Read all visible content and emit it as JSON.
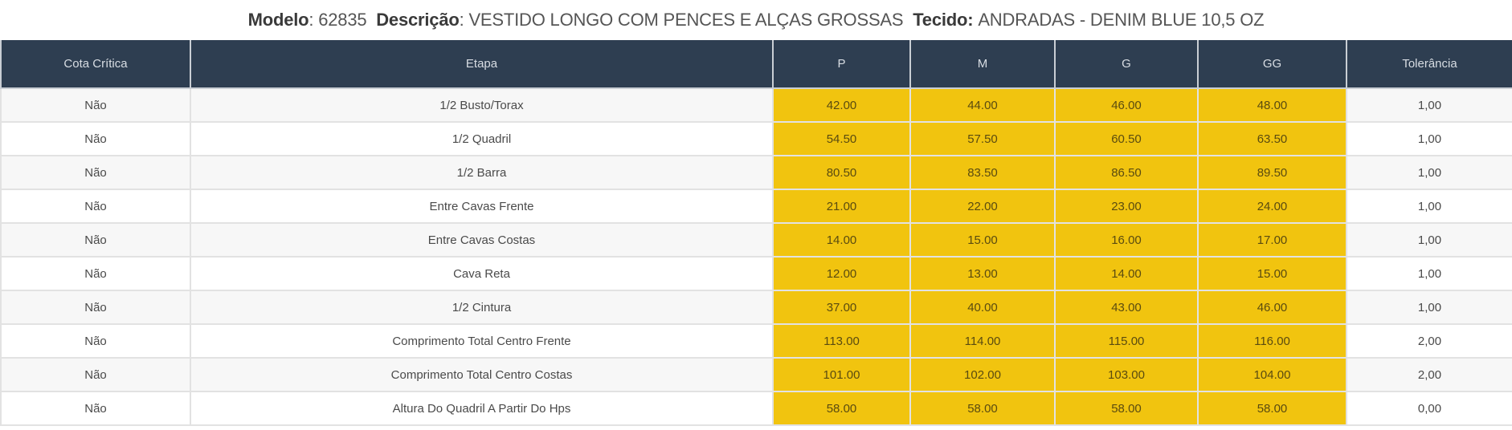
{
  "header": {
    "modelo_label": "Modelo",
    "modelo_value": "62835",
    "descricao_label": "Descrição",
    "descricao_value": "VESTIDO LONGO COM PENCES E ALÇAS GROSSAS",
    "tecido_label": "Tecido:",
    "tecido_value": "ANDRADAS - DENIM BLUE 10,5 OZ"
  },
  "table": {
    "columns": [
      "Cota Crítica",
      "Etapa",
      "P",
      "M",
      "G",
      "GG",
      "Tolerância"
    ],
    "rows": [
      {
        "cota": "Não",
        "etapa": "1/2 Busto/Torax",
        "p": "42.00",
        "m": "44.00",
        "g": "46.00",
        "gg": "48.00",
        "tol": "1,00"
      },
      {
        "cota": "Não",
        "etapa": "1/2 Quadril",
        "p": "54.50",
        "m": "57.50",
        "g": "60.50",
        "gg": "63.50",
        "tol": "1,00"
      },
      {
        "cota": "Não",
        "etapa": "1/2 Barra",
        "p": "80.50",
        "m": "83.50",
        "g": "86.50",
        "gg": "89.50",
        "tol": "1,00"
      },
      {
        "cota": "Não",
        "etapa": "Entre Cavas Frente",
        "p": "21.00",
        "m": "22.00",
        "g": "23.00",
        "gg": "24.00",
        "tol": "1,00"
      },
      {
        "cota": "Não",
        "etapa": "Entre Cavas Costas",
        "p": "14.00",
        "m": "15.00",
        "g": "16.00",
        "gg": "17.00",
        "tol": "1,00"
      },
      {
        "cota": "Não",
        "etapa": "Cava Reta",
        "p": "12.00",
        "m": "13.00",
        "g": "14.00",
        "gg": "15.00",
        "tol": "1,00"
      },
      {
        "cota": "Não",
        "etapa": "1/2 Cintura",
        "p": "37.00",
        "m": "40.00",
        "g": "43.00",
        "gg": "46.00",
        "tol": "1,00"
      },
      {
        "cota": "Não",
        "etapa": "Comprimento Total Centro Frente",
        "p": "113.00",
        "m": "114.00",
        "g": "115.00",
        "gg": "116.00",
        "tol": "2,00"
      },
      {
        "cota": "Não",
        "etapa": "Comprimento Total Centro Costas",
        "p": "101.00",
        "m": "102.00",
        "g": "103.00",
        "gg": "104.00",
        "tol": "2,00"
      },
      {
        "cota": "Não",
        "etapa": "Altura Do Quadril A Partir Do Hps",
        "p": "58.00",
        "m": "58.00",
        "g": "58.00",
        "gg": "58.00",
        "tol": "0,00"
      }
    ]
  },
  "colors": {
    "header_bg": "#2e3e51",
    "size_highlight": "#f1c40f",
    "row_alt": "#f7f7f7"
  }
}
